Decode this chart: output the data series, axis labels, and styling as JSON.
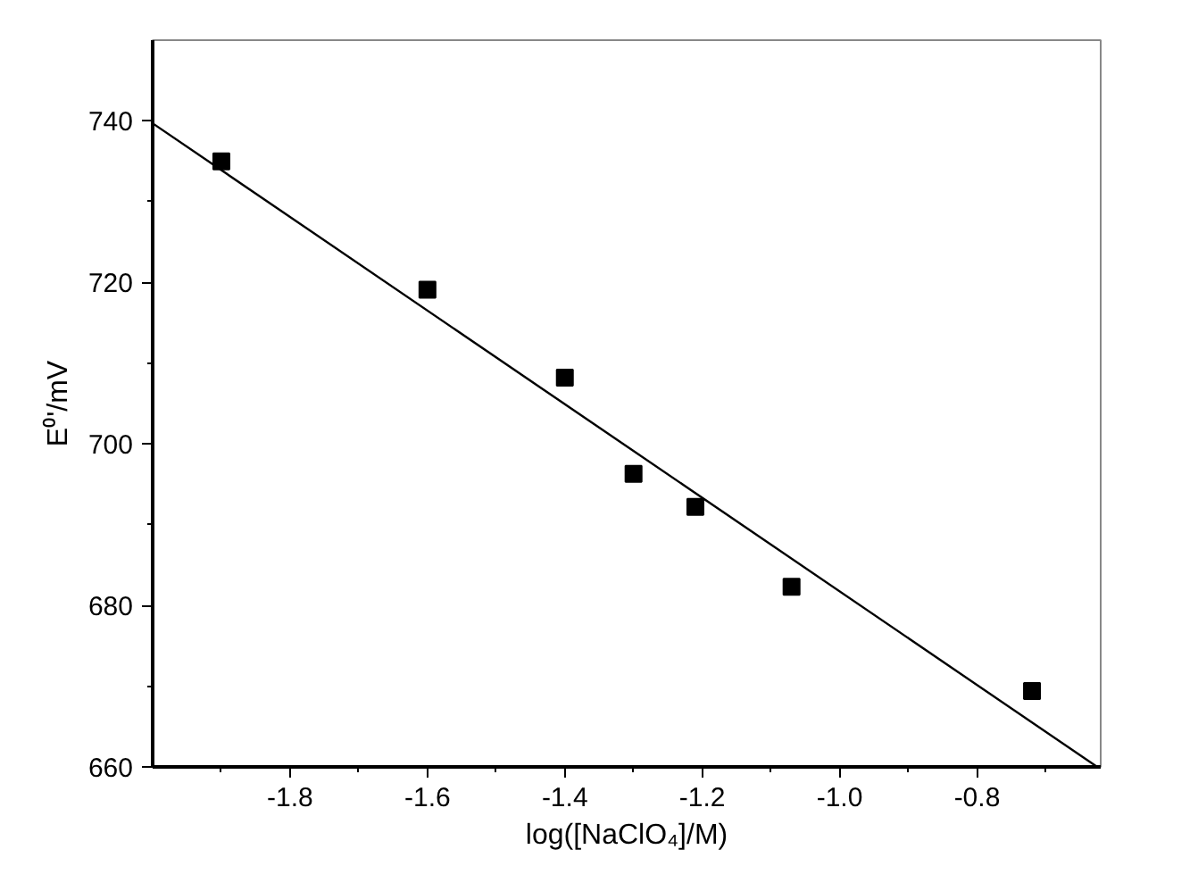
{
  "chart_data": {
    "type": "scatter",
    "xlabel": "log([NaClO₄]/M)",
    "ylabel": "E⁰'/mV",
    "xlim": [
      -2.0,
      -0.62
    ],
    "ylim": [
      660,
      750
    ],
    "xticks": [
      {
        "value": -1.9,
        "label": null
      },
      -1.8,
      {
        "value": -1.7,
        "label": null
      },
      -1.6,
      {
        "value": -1.5,
        "label": null
      },
      -1.4,
      {
        "value": -1.3,
        "label": null
      },
      -1.2,
      {
        "value": -1.1,
        "label": null
      },
      {
        "value": -1.0,
        "label": "-1.0"
      },
      {
        "value": -0.9,
        "label": null
      },
      -0.8,
      {
        "value": -0.7,
        "label": null
      }
    ],
    "yticks": [
      660,
      {
        "value": 670,
        "label": null
      },
      680,
      {
        "value": 690,
        "label": null
      },
      700,
      {
        "value": 710,
        "label": null
      },
      720,
      {
        "value": 730,
        "label": null
      },
      740
    ],
    "grid": false,
    "marker": "square",
    "series": [
      {
        "color": "#000000",
        "x": [
          -1.9,
          -1.6,
          -1.4,
          -1.3,
          -1.21,
          -1.07,
          -0.72
        ],
        "values": [
          735.0,
          719.1,
          708.2,
          696.3,
          692.2,
          682.3,
          669.4
        ]
      },
      {
        "type": "line",
        "color": "#000000",
        "marker": "none",
        "x": [
          -2.0,
          -0.625
        ],
        "values": [
          739.7,
          660.0
        ]
      }
    ]
  }
}
